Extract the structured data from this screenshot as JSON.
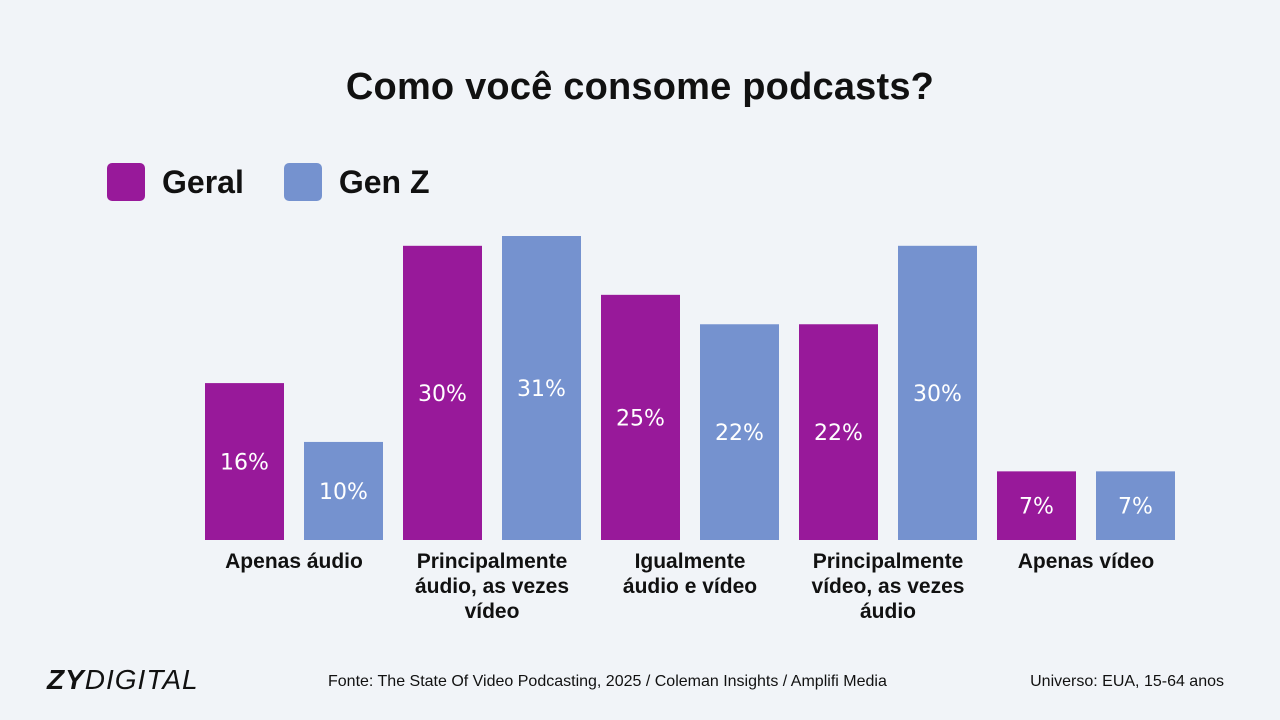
{
  "chart_data": {
    "type": "bar",
    "title": "Como você consome podcasts?",
    "categories": [
      [
        "Apenas áudio"
      ],
      [
        "Principalmente",
        "áudio, as vezes",
        "vídeo"
      ],
      [
        "Igualmente",
        "áudio e vídeo"
      ],
      [
        "Principalmente",
        "vídeo, as vezes",
        "áudio"
      ],
      [
        "Apenas vídeo"
      ]
    ],
    "series": [
      {
        "name": "Geral",
        "color": "#98199a",
        "values": [
          16,
          30,
          25,
          22,
          7
        ],
        "labels": [
          "16%",
          "30%",
          "25%",
          "22%",
          "7%"
        ]
      },
      {
        "name": "Gen Z",
        "color": "#7592cf",
        "values": [
          10,
          31,
          22,
          30,
          7
        ],
        "labels": [
          "10%",
          "31%",
          "22%",
          "30%",
          "7%"
        ]
      }
    ],
    "ylim": [
      0,
      31
    ],
    "legend_position": "top-left",
    "grid": false
  },
  "footer": {
    "logo_bold": "ZY",
    "logo_light": "DIGITAL",
    "source": "Fonte: The State Of Video Podcasting, 2025 / Coleman Insights / Amplifi Media",
    "universe": "Universo: EUA, 15-64 anos"
  }
}
